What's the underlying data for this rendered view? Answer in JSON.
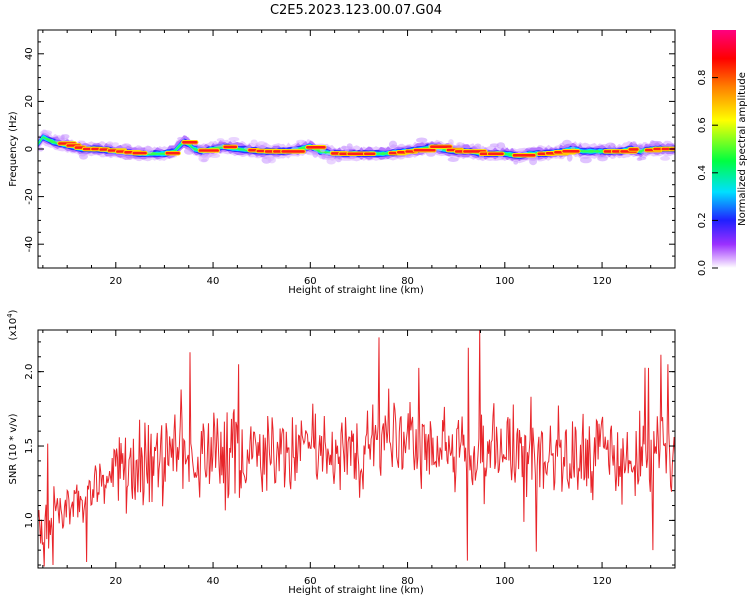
{
  "title": "C2E5.2023.123.00.07.G04",
  "chart_data": [
    {
      "type": "heatmap",
      "xlabel": "Height of straight line (km)",
      "ylabel": "Frequency (Hz)",
      "xlim": [
        4,
        135
      ],
      "ylim": [
        -50,
        50
      ],
      "x_ticks": [
        20,
        40,
        60,
        80,
        100,
        120
      ],
      "y_ticks": [
        -40,
        -20,
        0,
        20,
        40
      ],
      "colorbar": {
        "label": "Normalized spectral amplitude",
        "range": [
          0.0,
          1.0
        ],
        "ticks": [
          "0.0",
          "0.2",
          "0.4",
          "0.6",
          "0.8"
        ],
        "colormap": [
          "#ffffff",
          "#d8a8ff",
          "#9b30ff",
          "#2020ff",
          "#00e0ff",
          "#00ff40",
          "#ffff00",
          "#ff8000",
          "#ff0000",
          "#ff0080"
        ]
      },
      "ridge": {
        "x": [
          4,
          5,
          7,
          9,
          11,
          13,
          16,
          20,
          25,
          30,
          32,
          34,
          35,
          36,
          38,
          40,
          42,
          45,
          50,
          55,
          58,
          60,
          62,
          65,
          70,
          75,
          80,
          83,
          85,
          87,
          90,
          93,
          95,
          97,
          100,
          103,
          105,
          108,
          112,
          114,
          116,
          120,
          124,
          126,
          128,
          130,
          133,
          135
        ],
        "frequency": [
          2,
          5,
          3,
          2,
          1,
          0,
          0,
          -1,
          -2,
          -2,
          -1,
          3,
          2,
          0,
          -1,
          0,
          1,
          0,
          -1,
          -1,
          0,
          1,
          -1,
          -2,
          -2,
          -2,
          -1,
          0,
          1,
          0,
          -1,
          -1,
          -2,
          -2,
          -2,
          -3,
          -2,
          -2,
          -1,
          0,
          -1,
          -1,
          -1,
          0,
          -1,
          0,
          0,
          0
        ],
        "spread_hz": 4
      }
    },
    {
      "type": "line",
      "xlabel": "Height of straight line (km)",
      "ylabel": "SNR (10 * v/v)",
      "y_exponent_label": "(x10",
      "y_exponent_power": "4",
      "y_exponent_close": ")",
      "xlim": [
        4,
        135
      ],
      "ylim": [
        0.68,
        2.28
      ],
      "y_unit_scale": 10000,
      "x_ticks": [
        20,
        40,
        60,
        80,
        100,
        120
      ],
      "y_ticks": [
        "1.0",
        "1.5",
        "2.0"
      ],
      "line_color": "#e8252a",
      "trend": {
        "x": [
          4,
          10,
          15,
          20,
          25,
          30,
          35,
          40,
          50,
          60,
          70,
          80,
          90,
          100,
          110,
          120,
          135
        ],
        "y": [
          0.92,
          1.05,
          1.18,
          1.3,
          1.38,
          1.42,
          1.45,
          1.46,
          1.47,
          1.48,
          1.5,
          1.5,
          1.48,
          1.47,
          1.46,
          1.45,
          1.44
        ]
      },
      "samples_per_km": 5.5,
      "notable_peaks": [
        {
          "x": 35.2,
          "y": 2.13
        },
        {
          "x": 45.3,
          "y": 2.05
        },
        {
          "x": 74.2,
          "y": 2.23
        },
        {
          "x": 92.5,
          "y": 2.16
        },
        {
          "x": 94.8,
          "y": 2.29
        },
        {
          "x": 133.5,
          "y": 2.05
        }
      ],
      "notable_troughs": [
        {
          "x": 7.0,
          "y": 0.7
        },
        {
          "x": 14.0,
          "y": 0.72
        },
        {
          "x": 92.3,
          "y": 0.73
        },
        {
          "x": 106.5,
          "y": 0.79
        },
        {
          "x": 130.5,
          "y": 0.8
        }
      ]
    }
  ]
}
